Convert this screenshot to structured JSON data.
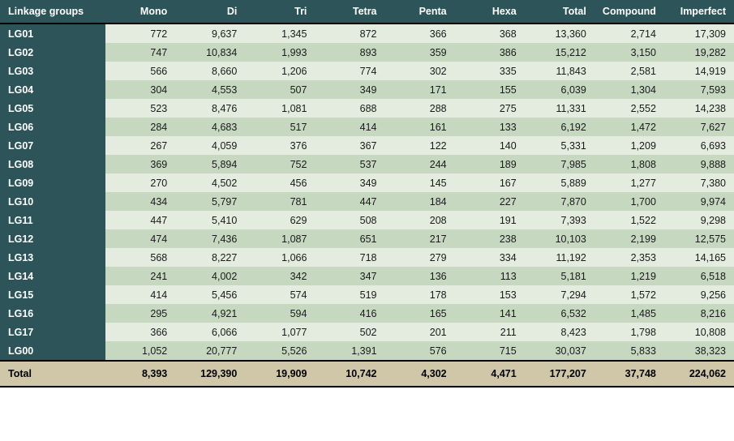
{
  "table": {
    "columns": [
      "Linkage groups",
      "Mono",
      "Di",
      "Tri",
      "Tetra",
      "Penta",
      "Hexa",
      "Total",
      "Compound",
      "Imperfect"
    ],
    "rows": [
      [
        "LG01",
        "772",
        "9,637",
        "1,345",
        "872",
        "366",
        "368",
        "13,360",
        "2,714",
        "17,309"
      ],
      [
        "LG02",
        "747",
        "10,834",
        "1,993",
        "893",
        "359",
        "386",
        "15,212",
        "3,150",
        "19,282"
      ],
      [
        "LG03",
        "566",
        "8,660",
        "1,206",
        "774",
        "302",
        "335",
        "11,843",
        "2,581",
        "14,919"
      ],
      [
        "LG04",
        "304",
        "4,553",
        "507",
        "349",
        "171",
        "155",
        "6,039",
        "1,304",
        "7,593"
      ],
      [
        "LG05",
        "523",
        "8,476",
        "1,081",
        "688",
        "288",
        "275",
        "11,331",
        "2,552",
        "14,238"
      ],
      [
        "LG06",
        "284",
        "4,683",
        "517",
        "414",
        "161",
        "133",
        "6,192",
        "1,472",
        "7,627"
      ],
      [
        "LG07",
        "267",
        "4,059",
        "376",
        "367",
        "122",
        "140",
        "5,331",
        "1,209",
        "6,693"
      ],
      [
        "LG08",
        "369",
        "5,894",
        "752",
        "537",
        "244",
        "189",
        "7,985",
        "1,808",
        "9,888"
      ],
      [
        "LG09",
        "270",
        "4,502",
        "456",
        "349",
        "145",
        "167",
        "5,889",
        "1,277",
        "7,380"
      ],
      [
        "LG10",
        "434",
        "5,797",
        "781",
        "447",
        "184",
        "227",
        "7,870",
        "1,700",
        "9,974"
      ],
      [
        "LG11",
        "447",
        "5,410",
        "629",
        "508",
        "208",
        "191",
        "7,393",
        "1,522",
        "9,298"
      ],
      [
        "LG12",
        "474",
        "7,436",
        "1,087",
        "651",
        "217",
        "238",
        "10,103",
        "2,199",
        "12,575"
      ],
      [
        "LG13",
        "568",
        "8,227",
        "1,066",
        "718",
        "279",
        "334",
        "11,192",
        "2,353",
        "14,165"
      ],
      [
        "LG14",
        "241",
        "4,002",
        "342",
        "347",
        "136",
        "113",
        "5,181",
        "1,219",
        "6,518"
      ],
      [
        "LG15",
        "414",
        "5,456",
        "574",
        "519",
        "178",
        "153",
        "7,294",
        "1,572",
        "9,256"
      ],
      [
        "LG16",
        "295",
        "4,921",
        "594",
        "416",
        "165",
        "141",
        "6,532",
        "1,485",
        "8,216"
      ],
      [
        "LG17",
        "366",
        "6,066",
        "1,077",
        "502",
        "201",
        "211",
        "8,423",
        "1,798",
        "10,808"
      ],
      [
        "LG00",
        "1,052",
        "20,777",
        "5,526",
        "1,391",
        "576",
        "715",
        "30,037",
        "5,833",
        "38,323"
      ]
    ],
    "footer": [
      "Total",
      "8,393",
      "129,390",
      "19,909",
      "10,742",
      "4,302",
      "4,471",
      "177,207",
      "37,748",
      "224,062"
    ],
    "colors": {
      "header_bg": "#2d5559",
      "header_text": "#ffffff",
      "row_odd_bg": "#e3ecde",
      "row_even_bg": "#c6d9c0",
      "rowhead_bg": "#2d5559",
      "footer_bg": "#cfc7a7",
      "border": "#000000"
    },
    "font_size": 12.5,
    "alignment": {
      "first_col": "left",
      "others": "right"
    }
  }
}
